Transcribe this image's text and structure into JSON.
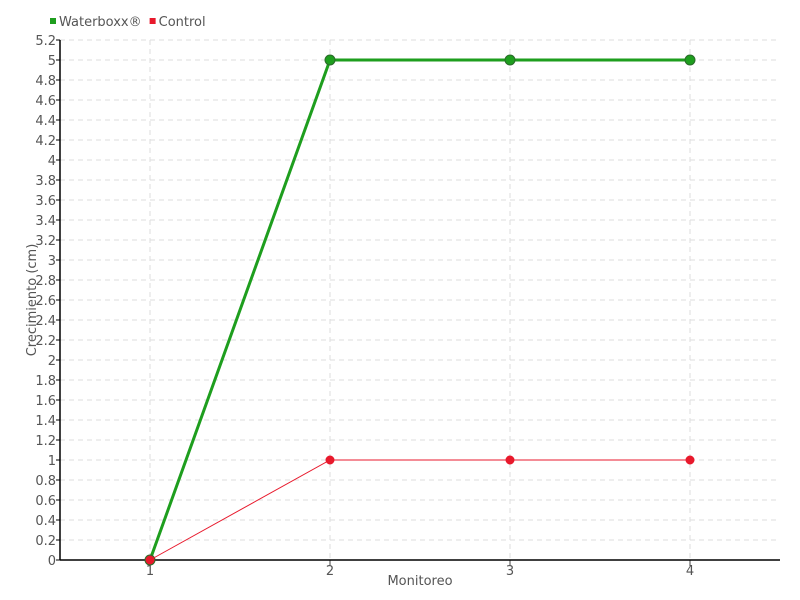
{
  "chart_data": {
    "type": "line",
    "title": "",
    "xlabel": "Monitoreo",
    "ylabel": "Crecimiento (cm)",
    "categories": [
      "1",
      "2",
      "3",
      "4"
    ],
    "ylim": [
      0,
      5.2
    ],
    "y_ticks": [
      "0",
      "0.2",
      "0.4",
      "0.6",
      "0.8",
      "1",
      "1.2",
      "1.4",
      "1.6",
      "1.8",
      "2",
      "2.2",
      "2.4",
      "2.6",
      "2.8",
      "3",
      "3.2",
      "3.4",
      "3.6",
      "3.8",
      "4",
      "4.2",
      "4.4",
      "4.6",
      "4.8",
      "5",
      "5.2"
    ],
    "grid": true,
    "legend_position": "top-left",
    "series": [
      {
        "name": "Waterboxx®",
        "color": "#1e9e1e",
        "values": [
          0,
          5,
          5,
          5
        ]
      },
      {
        "name": "Control",
        "color": "#e8192c",
        "values": [
          0,
          1,
          1,
          1
        ]
      }
    ]
  }
}
